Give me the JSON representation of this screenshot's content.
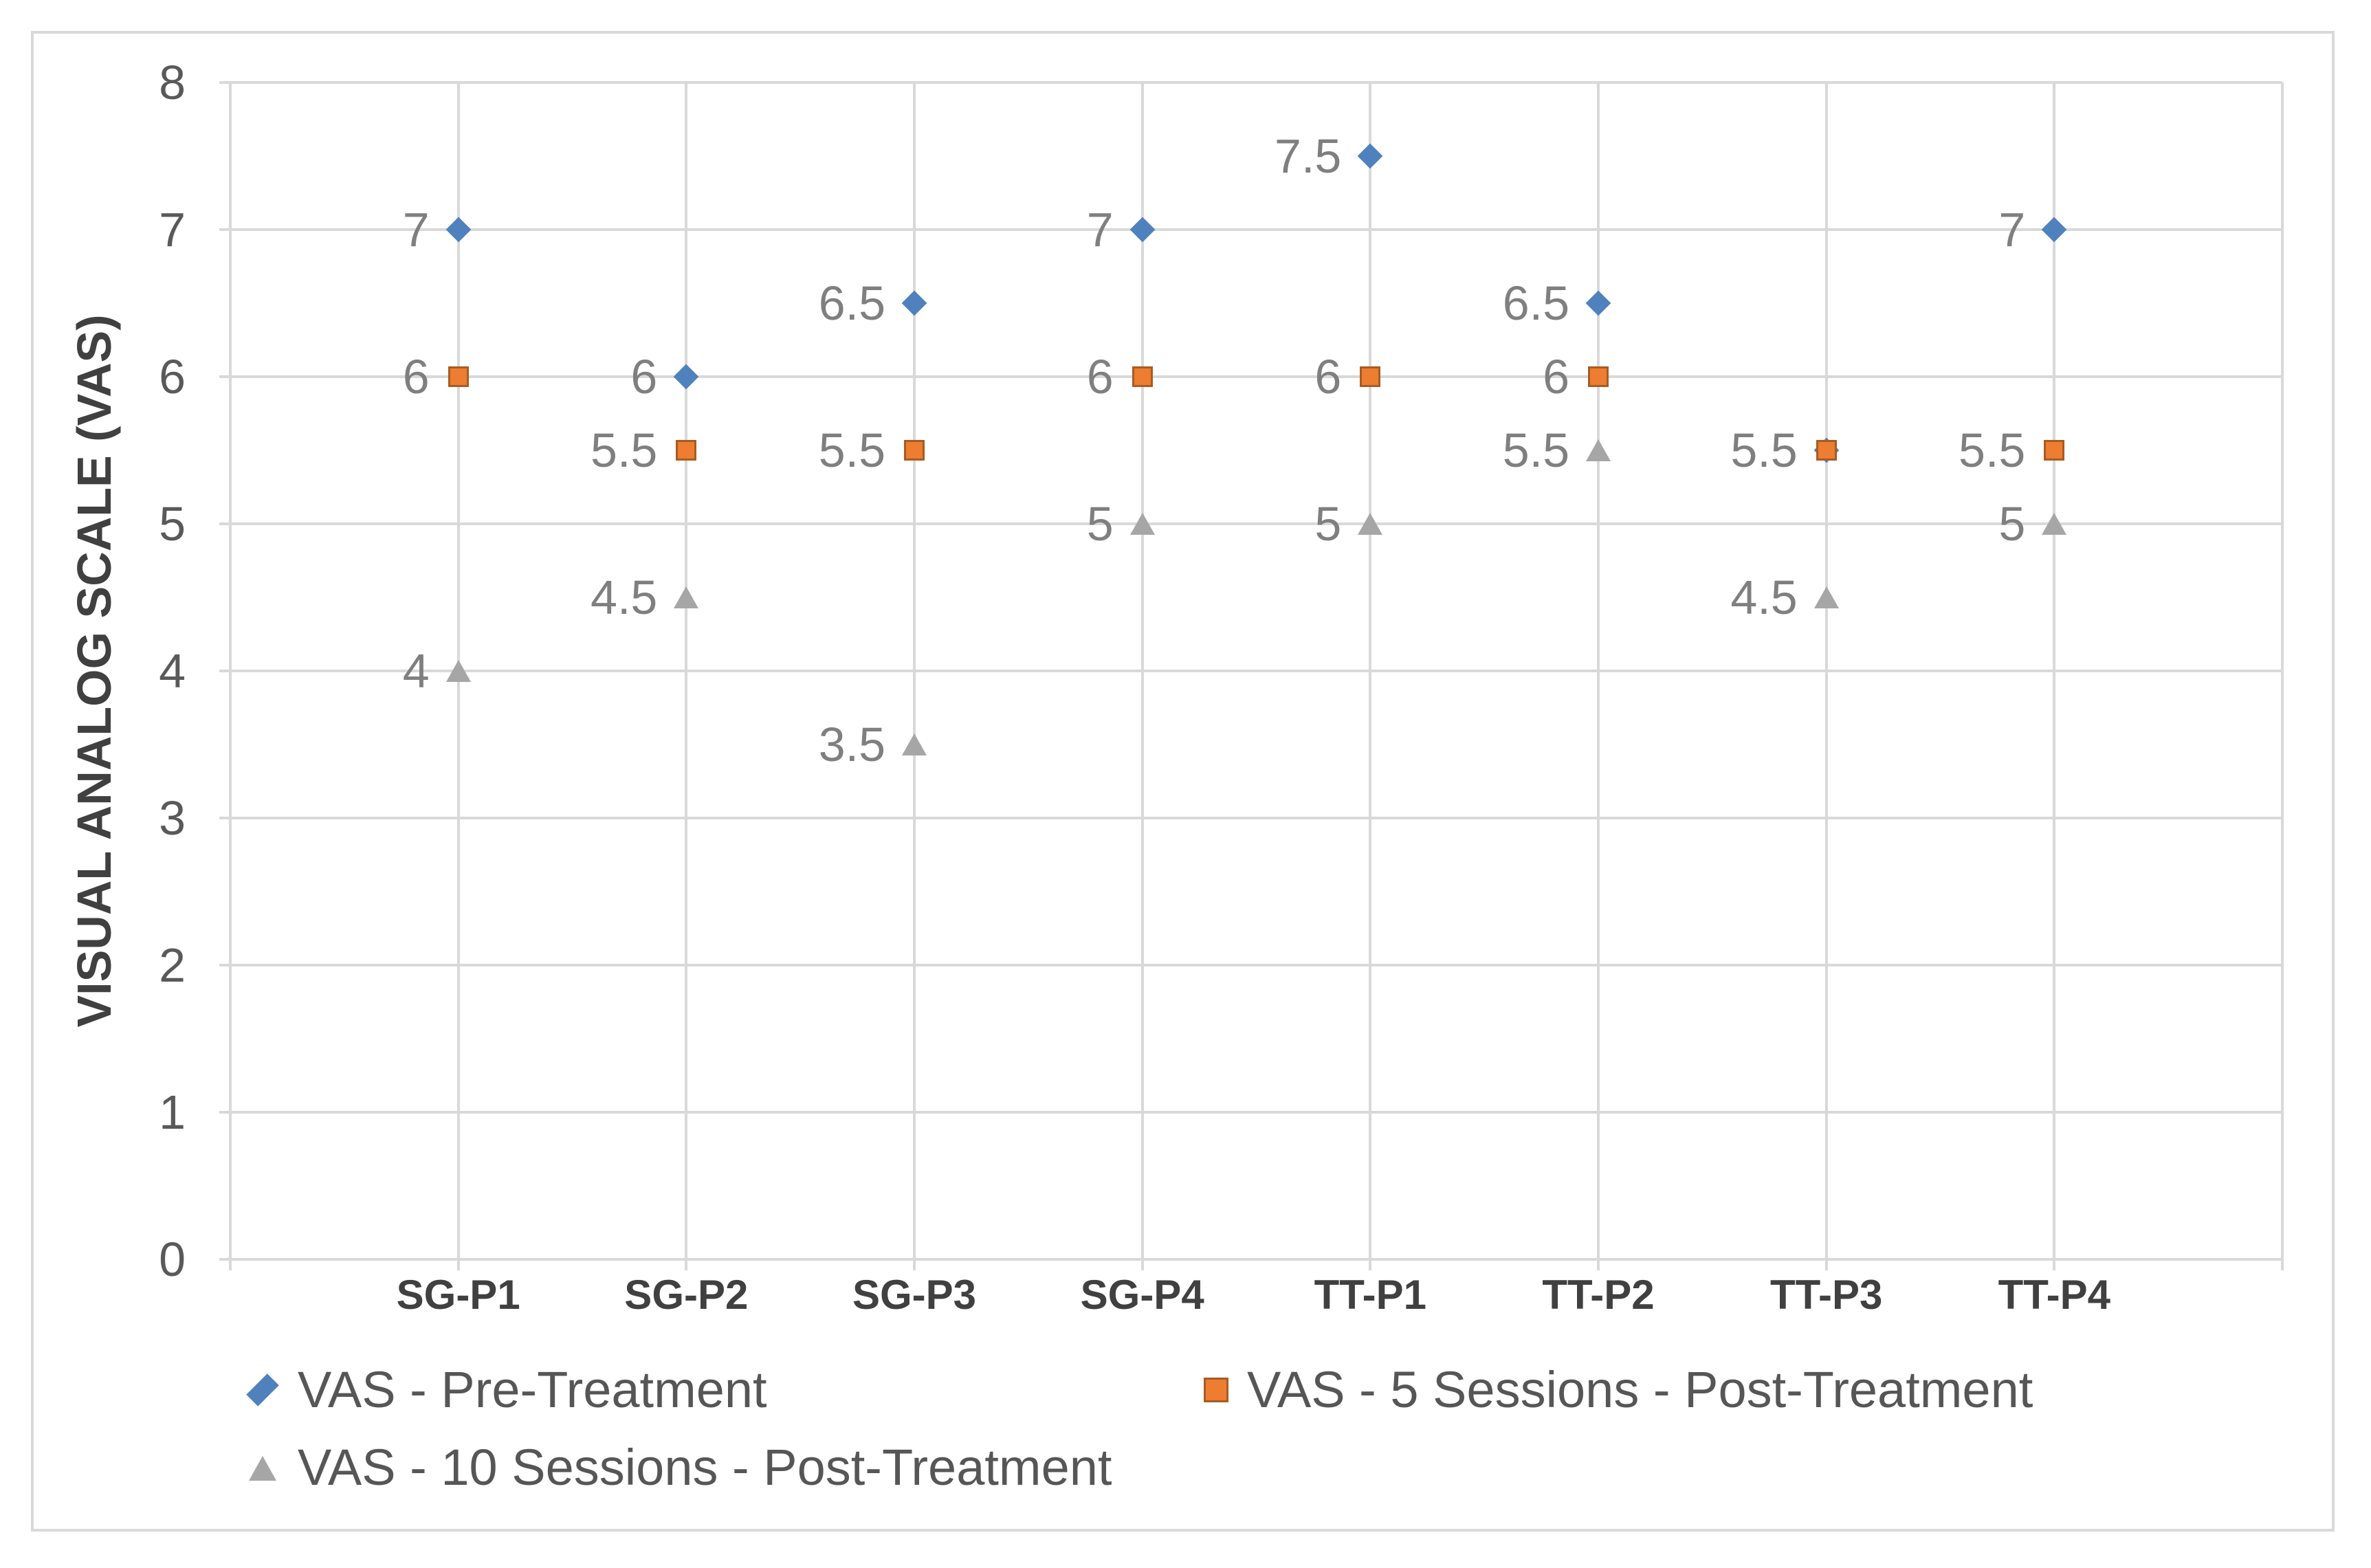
{
  "chart_data": {
    "type": "scatter",
    "title": "",
    "ylabel": "VISUAL ANALOG SCALE (VAS)",
    "xlabel": "",
    "categories": [
      "SG-P1",
      "SG-P2",
      "SG-P3",
      "SG-P4",
      "TT-P1",
      "TT-P2",
      "TT-P3",
      "TT-P4"
    ],
    "ylim": [
      0,
      8
    ],
    "ytick_labels": [
      "0",
      "1",
      "2",
      "3",
      "4",
      "5",
      "6",
      "7",
      "8"
    ],
    "grid": "both",
    "legend_position": "bottom-left-two-rows",
    "series": [
      {
        "name": "VAS - Pre-Treatment",
        "marker": "diamond",
        "color": "#4F81BD",
        "values": [
          7,
          6,
          6.5,
          7,
          7.5,
          6.5,
          5.5,
          7
        ],
        "labels": [
          "7",
          "6",
          "6.5",
          "7",
          "7.5",
          "6.5",
          "",
          "7"
        ]
      },
      {
        "name": "VAS - 5 Sessions - Post-Treatment",
        "marker": "square",
        "color": "#ED7D31",
        "values": [
          6,
          5.5,
          5.5,
          6,
          6,
          6,
          5.5,
          5.5
        ],
        "labels": [
          "6",
          "5.5",
          "5.5",
          "6",
          "6",
          "6",
          "5.5",
          "5.5"
        ]
      },
      {
        "name": "VAS - 10 Sessions - Post-Treatment",
        "marker": "triangle",
        "color": "#A6A6A6",
        "values": [
          4,
          4.5,
          3.5,
          5,
          5,
          5.5,
          4.5,
          5
        ],
        "labels": [
          "4",
          "4.5",
          "3.5",
          "5",
          "5",
          "5.5",
          "4.5",
          "5"
        ]
      }
    ]
  },
  "colors": {
    "background": "#FFFFFF",
    "frame_border": "#D9D9D9",
    "gridline": "#D9D9D9",
    "ytick_label": "#595959",
    "category_label": "#404040",
    "axis_title": "#404040",
    "data_label": "#7F7F7F",
    "legend_text": "#565656"
  }
}
